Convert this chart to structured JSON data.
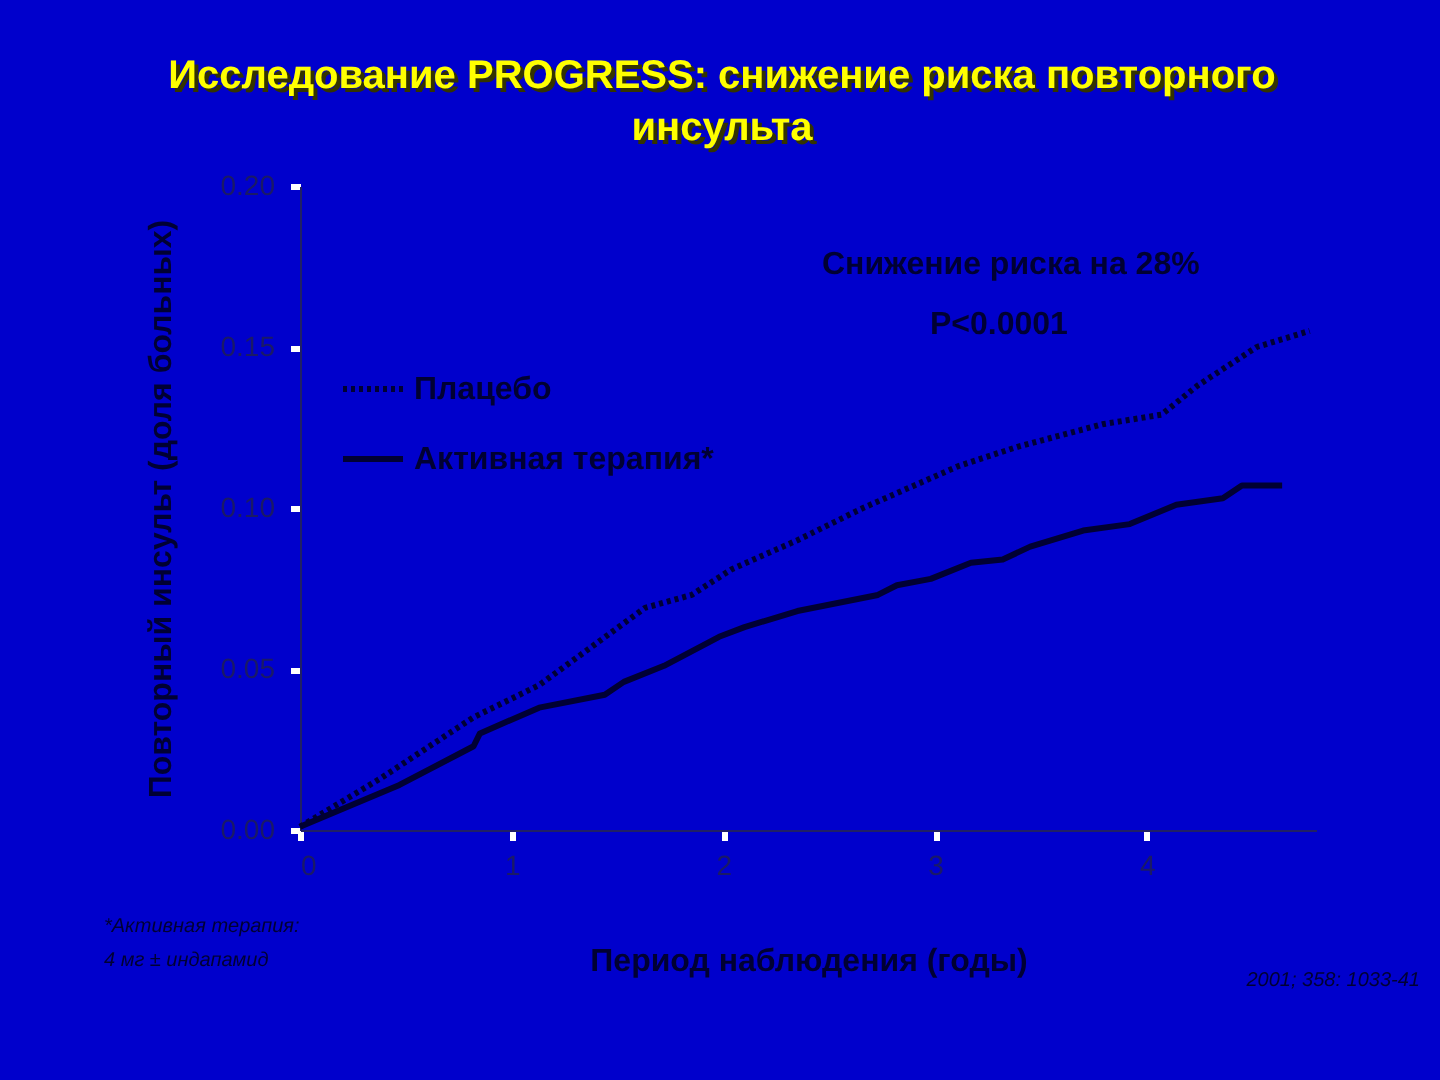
{
  "chart_data": {
    "type": "line",
    "title": "Исследование PROGRESS: снижение риска повторного инсульта",
    "xlabel": "Период наблюдения (годы)",
    "ylabel": "Повторный инсульт (доля больных)",
    "x": [
      0,
      0.38,
      0.82,
      1.13,
      1.38,
      1.63,
      1.85,
      2.04,
      2.35,
      2.66,
      3.11,
      3.39,
      3.79,
      4.07,
      4.24,
      4.52,
      4.77
    ],
    "series": [
      {
        "name": "Плацебо",
        "color": "#000033",
        "line_style": "dotted",
        "values": [
          0.001,
          0.016,
          0.035,
          0.045,
          0.057,
          0.069,
          0.073,
          0.081,
          0.09,
          0.1,
          0.113,
          0.119,
          0.126,
          0.129,
          0.138,
          0.15,
          0.155
        ]
      },
      {
        "name": "Активная терапия*",
        "color": "#000033",
        "line_style": "solid",
        "x": [
          0,
          0.47,
          0.82,
          0.85,
          1.13,
          1.44,
          1.53,
          1.72,
          1.98,
          2.1,
          2.35,
          2.73,
          2.82,
          2.98,
          3.17,
          3.32,
          3.45,
          3.7,
          3.92,
          4.14,
          4.36,
          4.45,
          4.64
        ],
        "values": [
          0.001,
          0.014,
          0.026,
          0.03,
          0.038,
          0.042,
          0.046,
          0.051,
          0.06,
          0.063,
          0.068,
          0.073,
          0.076,
          0.078,
          0.083,
          0.084,
          0.088,
          0.093,
          0.095,
          0.101,
          0.103,
          0.107,
          0.107
        ]
      }
    ],
    "xlim": [
      0,
      4.8
    ],
    "xticks": [
      0,
      1,
      2,
      3,
      4
    ],
    "ylim": [
      0,
      0.2
    ],
    "yticks": [
      {
        "value": 0,
        "label": "0.00"
      },
      {
        "value": 0.05,
        "label": "0.05"
      },
      {
        "value": 0.1,
        "label": "0.10"
      },
      {
        "value": 0.15,
        "label": "0.15"
      },
      {
        "value": 0.2,
        "label": "0.20"
      }
    ],
    "legend": "top left",
    "grid": false,
    "marker": "none",
    "annotations": [
      "Снижение риска на 28%",
      "P<0.0001",
      "*Активная терапия:",
      "4 мг ± индапамид",
      "2001; 358: 1033-41"
    ]
  }
}
